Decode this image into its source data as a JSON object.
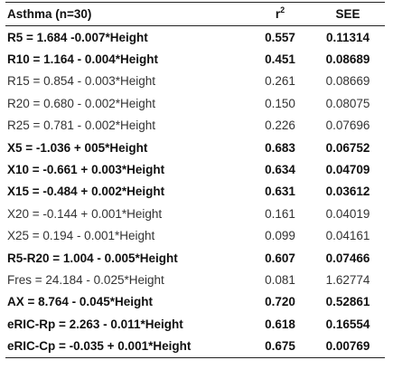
{
  "header": {
    "label": "Asthma (n=30)",
    "r2_base": "r",
    "r2_sup": "2",
    "see": "SEE"
  },
  "rows": [
    {
      "label": "R5 = 1.684 -0.007*Height",
      "r2": "0.557",
      "see": "0.11314",
      "bold": true
    },
    {
      "label": "R10 = 1.164 - 0.004*Height",
      "r2": "0.451",
      "see": "0.08689",
      "bold": true
    },
    {
      "label": "R15 = 0.854 - 0.003*Height",
      "r2": "0.261",
      "see": "0.08669",
      "bold": false
    },
    {
      "label": "R20 = 0.680 - 0.002*Height",
      "r2": "0.150",
      "see": "0.08075",
      "bold": false
    },
    {
      "label": "R25 = 0.781 - 0.002*Height",
      "r2": "0.226",
      "see": "0.07696",
      "bold": false
    },
    {
      "label": "X5 = -1.036 + 005*Height",
      "r2": "0.683",
      "see": "0.06752",
      "bold": true
    },
    {
      "label": "X10 = -0.661 + 0.003*Height",
      "r2": "0.634",
      "see": "0.04709",
      "bold": true
    },
    {
      "label": "X15 = -0.484 + 0.002*Height",
      "r2": "0.631",
      "see": "0.03612",
      "bold": true
    },
    {
      "label": "X20 = -0.144 + 0.001*Height",
      "r2": "0.161",
      "see": "0.04019",
      "bold": false
    },
    {
      "label": "X25 = 0.194 - 0.001*Height",
      "r2": "0.099",
      "see": "0.04161",
      "bold": false
    },
    {
      "label": "R5-R20 = 1.004 - 0.005*Height",
      "r2": "0.607",
      "see": "0.07466",
      "bold": true
    },
    {
      "label": "Fres = 24.184 - 0.025*Height",
      "r2": "0.081",
      "see": "1.62774",
      "bold": false
    },
    {
      "label": "AX = 8.764 - 0.045*Height",
      "r2": "0.720",
      "see": "0.52861",
      "bold": true
    },
    {
      "label": "eRIC-Rp = 2.263 - 0.011*Height",
      "r2": "0.618",
      "see": "0.16554",
      "bold": true
    },
    {
      "label": "eRIC-Cp = -0.035 + 0.001*Height",
      "r2": "0.675",
      "see": "0.00769",
      "bold": true
    }
  ]
}
